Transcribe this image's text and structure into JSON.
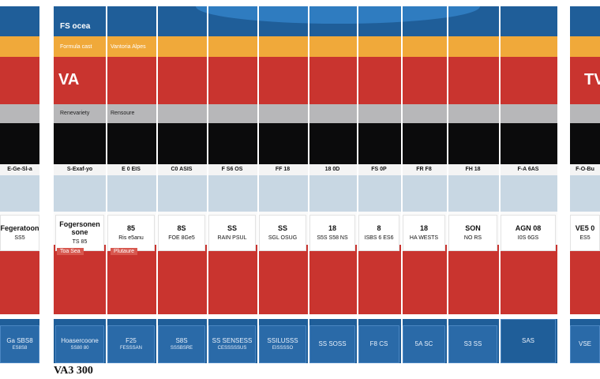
{
  "header": {
    "title": "FS ocea",
    "big_label": "VA",
    "right_big_label": "TV"
  },
  "orange_row": {
    "label_1": "Formula cast",
    "label_2": "Vantoria Alpes"
  },
  "gray_row": {
    "label_1": "Renevariety",
    "label_2": "Rensoure"
  },
  "red_pill_row": {
    "label_1": "Toa Sea",
    "label_2": "Plutaure"
  },
  "strip_row": [
    "S-Exaf-yo",
    "E 0 EIS",
    "C0 ASIS",
    "F S6 OS",
    "FF 18",
    "18 0D",
    "FS 0P",
    "FR F8",
    "FH 18",
    "F-A 6AS"
  ],
  "left_strip": "E-Ge-Sl-a",
  "right_strip": "F-O-Bu",
  "white_cards": [
    {
      "t1": "Fogersonen sone",
      "t2": "TS 85"
    },
    {
      "t1": "85",
      "t2": "Ris e5anu"
    },
    {
      "t1": "8S",
      "t2": "FOE 8Ge5"
    },
    {
      "t1": "SS",
      "t2": "RAIN PSUL"
    },
    {
      "t1": "SS",
      "t2": "SGL OSUG"
    },
    {
      "t1": "18",
      "t2": "S5S S58 NS"
    },
    {
      "t1": "8",
      "t2": "ISBS 6 ES6"
    },
    {
      "t1": "18",
      "t2": "HA WESTS"
    },
    {
      "t1": "SON",
      "t2": "NO RS"
    },
    {
      "t1": "AGN 08",
      "t2": "I0S 6GS"
    }
  ],
  "left_card": {
    "t1": "Fegeratoon",
    "t2": "SS5"
  },
  "right_card": {
    "t1": "VE5 0",
    "t2": "ES5"
  },
  "blue_cards": [
    {
      "t1": "Hoasercoone",
      "t2": "SS80 80"
    },
    {
      "t1": "F25",
      "t2": "FESSSAN"
    },
    {
      "t1": "S8S",
      "t2": "SSSBSRE"
    },
    {
      "t1": "SS SENSESS",
      "t2": "CESSSSSUS"
    },
    {
      "t1": "SSILUSSS",
      "t2": "EISSSSO"
    },
    {
      "t1": "SS SOSS",
      "t2": ""
    },
    {
      "t1": "F8 CS",
      "t2": ""
    },
    {
      "t1": "5A SC",
      "t2": ""
    },
    {
      "t1": "S3 SS",
      "t2": ""
    },
    {
      "t1": "SAS",
      "t2": ""
    }
  ],
  "left_blue": {
    "t1": "Ga SBS8",
    "t2": "ES8S8"
  },
  "right_blue": {
    "t1": "VSE",
    "t2": ""
  },
  "footer": {
    "label": "VA3 300"
  },
  "colors": {
    "blue": "#1f5e99",
    "orange": "#f0a93a",
    "red": "#c9342f",
    "gray": "#b7b7b9",
    "black": "#0b0b0c",
    "light_blue": "#c8d7e3"
  }
}
